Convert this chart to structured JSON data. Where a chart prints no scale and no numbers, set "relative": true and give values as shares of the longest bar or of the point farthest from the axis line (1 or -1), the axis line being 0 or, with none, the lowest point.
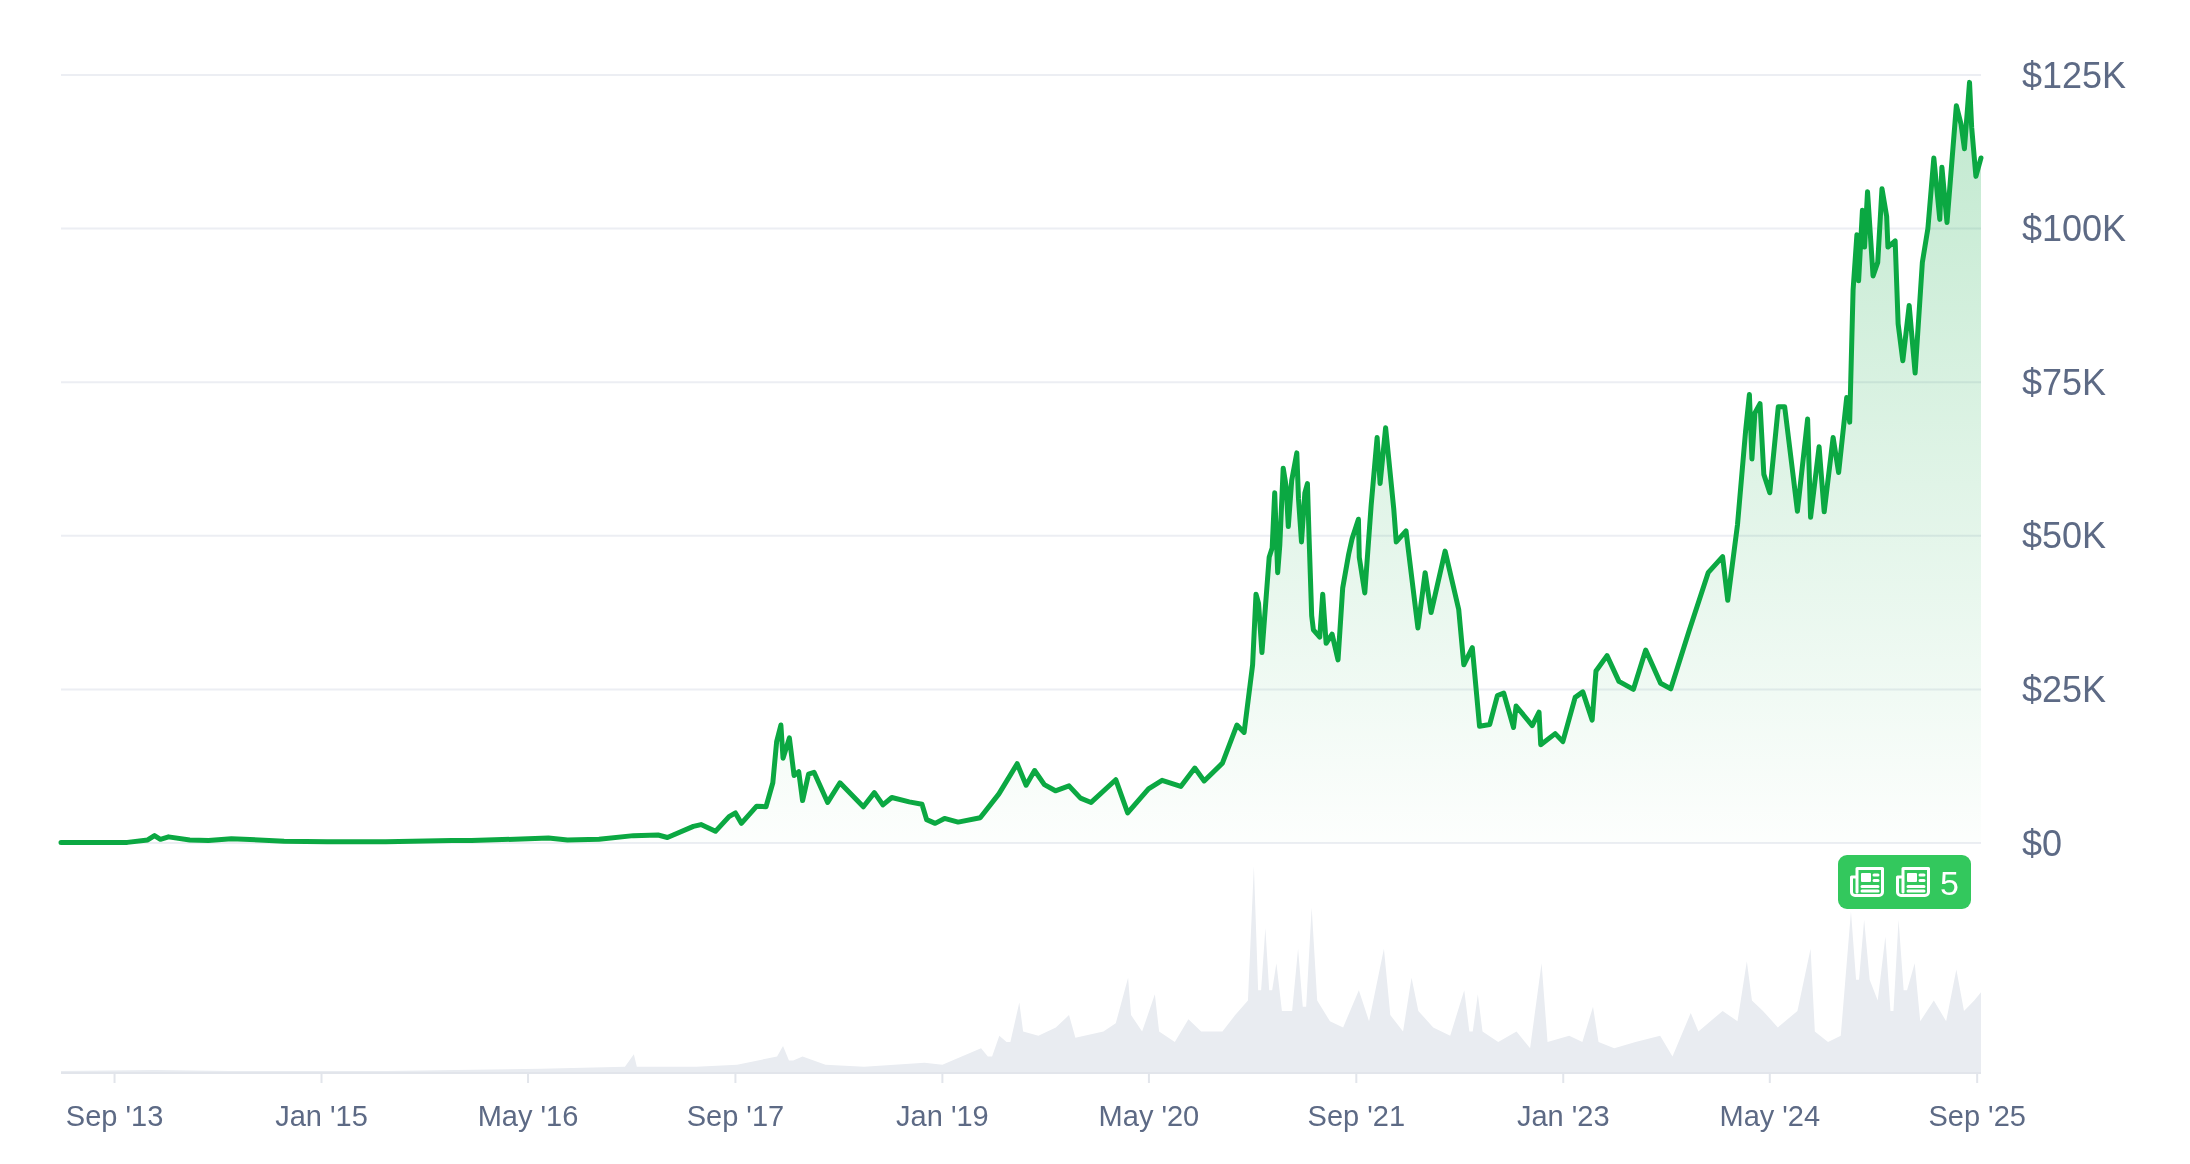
{
  "chart_data": [
    {
      "type": "area",
      "color": "#0ba842",
      "x": [
        "2013-04-28",
        "2013-07-05",
        "2013-10-01",
        "2013-11-18",
        "2013-12-04",
        "2013-12-18",
        "2014-01-06",
        "2014-02-25",
        "2014-04-10",
        "2014-06-03",
        "2014-10-05",
        "2015-01-14",
        "2015-06-01",
        "2015-11-04",
        "2015-12-20",
        "2016-06-18",
        "2016-08-02",
        "2016-10-15",
        "2017-01-04",
        "2017-03-03",
        "2017-03-25",
        "2017-05-25",
        "2017-06-12",
        "2017-07-16",
        "2017-08-17",
        "2017-09-01",
        "2017-09-15",
        "2017-10-21",
        "2017-11-12",
        "2017-11-28",
        "2017-12-07",
        "2017-12-17",
        "2017-12-22",
        "2018-01-06",
        "2018-01-17",
        "2018-01-28",
        "2018-02-06",
        "2018-02-20",
        "2018-03-05",
        "2018-04-06",
        "2018-05-05",
        "2018-06-29",
        "2018-07-25",
        "2018-08-14",
        "2018-09-04",
        "2018-10-15",
        "2018-11-14",
        "2018-11-25",
        "2018-12-15",
        "2019-01-06",
        "2019-02-07",
        "2019-03-31",
        "2019-05-14",
        "2019-06-26",
        "2019-07-17",
        "2019-08-06",
        "2019-08-29",
        "2019-09-24",
        "2019-10-26",
        "2019-11-22",
        "2019-12-17",
        "2020-02-13",
        "2020-03-12",
        "2020-04-30",
        "2020-06-01",
        "2020-07-15",
        "2020-08-17",
        "2020-09-08",
        "2020-10-21",
        "2020-11-24",
        "2020-12-11",
        "2020-12-31",
        "2021-01-08",
        "2021-01-14",
        "2021-01-22",
        "2021-02-08",
        "2021-02-15",
        "2021-02-21",
        "2021-02-28",
        "2021-03-05",
        "2021-03-13",
        "2021-03-20",
        "2021-03-25",
        "2021-04-02",
        "2021-04-14",
        "2021-04-18",
        "2021-04-25",
        "2021-05-03",
        "2021-05-09",
        "2021-05-13",
        "2021-05-19",
        "2021-05-23",
        "2021-06-07",
        "2021-06-14",
        "2021-06-22",
        "2021-07-06",
        "2021-07-20",
        "2021-07-31",
        "2021-08-14",
        "2021-08-22",
        "2021-09-06",
        "2021-09-08",
        "2021-09-21",
        "2021-10-06",
        "2021-10-20",
        "2021-10-27",
        "2021-11-09",
        "2021-11-28",
        "2021-12-04",
        "2021-12-27",
        "2022-01-24",
        "2022-02-10",
        "2022-02-24",
        "2022-03-29",
        "2022-04-30",
        "2022-05-12",
        "2022-06-01",
        "2022-06-18",
        "2022-07-12",
        "2022-07-30",
        "2022-08-14",
        "2022-09-06",
        "2022-09-12",
        "2022-10-20",
        "2022-11-05",
        "2022-11-09",
        "2022-12-13",
        "2022-12-31",
        "2023-01-29",
        "2023-02-16",
        "2023-03-10",
        "2023-03-19",
        "2023-04-14",
        "2023-05-12",
        "2023-06-15",
        "2023-07-14",
        "2023-08-18",
        "2023-09-11",
        "2023-10-24",
        "2023-12-08",
        "2024-01-11",
        "2024-01-23",
        "2024-02-15",
        "2024-03-05",
        "2024-03-14",
        "2024-03-20",
        "2024-03-27",
        "2024-04-08",
        "2024-04-17",
        "2024-05-01",
        "2024-05-21",
        "2024-06-05",
        "2024-06-24",
        "2024-07-05",
        "2024-07-29",
        "2024-08-05",
        "2024-08-25",
        "2024-09-06",
        "2024-09-27",
        "2024-10-10",
        "2024-10-29",
        "2024-11-05",
        "2024-11-13",
        "2024-11-22",
        "2024-11-26",
        "2024-12-05",
        "2024-12-10",
        "2024-12-17",
        "2024-12-30",
        "2025-01-10",
        "2025-01-20",
        "2025-01-31",
        "2025-02-03",
        "2025-02-20",
        "2025-02-27",
        "2025-03-10",
        "2025-03-25",
        "2025-04-08",
        "2025-04-25",
        "2025-05-08",
        "2025-05-22",
        "2025-06-05",
        "2025-06-10",
        "2025-06-22",
        "2025-07-14",
        "2025-07-25",
        "2025-08-02",
        "2025-08-14",
        "2025-08-19",
        "2025-08-29",
        "2025-09-10"
      ],
      "values": [
        100,
        100,
        100,
        500,
        1200,
        600,
        1000,
        500,
        400,
        700,
        300,
        200,
        200,
        400,
        400,
        800,
        500,
        600,
        1200,
        1300,
        900,
        2700,
        3000,
        1900,
        4300,
        4900,
        3200,
        6000,
        5900,
        9800,
        16500,
        19200,
        13800,
        17100,
        11000,
        11600,
        6900,
        11200,
        11500,
        6600,
        9800,
        5900,
        8200,
        6200,
        7400,
        6700,
        6300,
        3800,
        3200,
        4000,
        3400,
        4100,
        8000,
        12900,
        9400,
        11800,
        9500,
        8500,
        9300,
        7300,
        6600,
        10300,
        4900,
        8800,
        10200,
        9200,
        12200,
        10100,
        13000,
        19200,
        18000,
        29000,
        40500,
        39000,
        31000,
        46500,
        48000,
        57000,
        44000,
        48500,
        61000,
        58000,
        51500,
        59000,
        63500,
        56000,
        49000,
        57000,
        58500,
        49500,
        37000,
        34700,
        33500,
        40500,
        32500,
        34000,
        29800,
        41500,
        47000,
        49500,
        52700,
        46500,
        40700,
        55000,
        66000,
        58500,
        67600,
        54500,
        49000,
        50800,
        35000,
        44000,
        37500,
        47500,
        38000,
        29000,
        31800,
        19000,
        19300,
        24000,
        24400,
        18800,
        22300,
        19100,
        21300,
        16000,
        17800,
        16500,
        23700,
        24600,
        20000,
        28000,
        30500,
        26300,
        25000,
        31400,
        26000,
        25100,
        34500,
        44000,
        46600,
        39500,
        51800,
        67000,
        73000,
        62500,
        70000,
        71500,
        60000,
        57000,
        71000,
        71000,
        60300,
        54000,
        69000,
        53000,
        64500,
        53900,
        66000,
        60300,
        72500,
        68500,
        90000,
        99000,
        91500,
        103000,
        97000,
        106000,
        92300,
        94500,
        106500,
        102000,
        97000,
        98000,
        84500,
        78500,
        87500,
        76500,
        94500,
        100000,
        111500,
        101500,
        110000,
        101000,
        120000,
        117000,
        113000,
        123800,
        116500,
        108500,
        111500
      ],
      "xlim": [
        "2013-04-28",
        "2025-09-10"
      ],
      "ylim": [
        0,
        125000
      ],
      "yticks": [
        {
          "value": 0,
          "label": "$0"
        },
        {
          "value": 25000,
          "label": "$25K"
        },
        {
          "value": 50000,
          "label": "$50K"
        },
        {
          "value": 75000,
          "label": "$75K"
        },
        {
          "value": 100000,
          "label": "$100K"
        },
        {
          "value": 125000,
          "label": "$125K"
        }
      ],
      "grid": "y",
      "tick_labels": "y",
      "annotations": [
        "5"
      ]
    },
    {
      "type": "area",
      "relative": true,
      "color": "#e9ecf1",
      "x": [
        "2013-04-28",
        "2013-12-05",
        "2014-06-01",
        "2015-06-01",
        "2016-06-01",
        "2016-12-15",
        "2017-01-05",
        "2017-01-12",
        "2017-06-01",
        "2017-09-05",
        "2017-12-08",
        "2017-12-22",
        "2018-01-05",
        "2018-01-15",
        "2018-02-06",
        "2018-04-01",
        "2018-07-01",
        "2018-11-20",
        "2019-01-01",
        "2019-04-02",
        "2019-04-18",
        "2019-04-28",
        "2019-05-15",
        "2019-06-01",
        "2019-06-10",
        "2019-07-01",
        "2019-07-10",
        "2019-08-15",
        "2019-09-25",
        "2019-10-26",
        "2019-11-10",
        "2020-01-15",
        "2020-02-13",
        "2020-03-13",
        "2020-03-20",
        "2020-04-15",
        "2020-05-15",
        "2020-05-25",
        "2020-07-01",
        "2020-08-02",
        "2020-09-01",
        "2020-10-21",
        "2020-11-20",
        "2020-12-20",
        "2021-01-03",
        "2021-01-13",
        "2021-01-20",
        "2021-01-30",
        "2021-02-08",
        "2021-02-15",
        "2021-02-25",
        "2021-03-10",
        "2021-04-03",
        "2021-04-17",
        "2021-04-28",
        "2021-05-06",
        "2021-05-19",
        "2021-06-01",
        "2021-07-01",
        "2021-08-01",
        "2021-09-07",
        "2021-10-01",
        "2021-11-05",
        "2021-11-20",
        "2021-12-20",
        "2022-01-09",
        "2022-01-25",
        "2022-03-01",
        "2022-04-10",
        "2022-05-13",
        "2022-05-25",
        "2022-06-02",
        "2022-06-14",
        "2022-06-25",
        "2022-08-01",
        "2022-09-13",
        "2022-10-15",
        "2022-11-11",
        "2022-11-25",
        "2023-01-15",
        "2023-02-15",
        "2023-03-12",
        "2023-03-25",
        "2023-05-01",
        "2023-06-20",
        "2023-08-17",
        "2023-09-15",
        "2023-10-28",
        "2023-11-15",
        "2024-01-11",
        "2024-02-15",
        "2024-03-08",
        "2024-03-20",
        "2024-04-15",
        "2024-05-20",
        "2024-07-05",
        "2024-08-05",
        "2024-08-15",
        "2024-09-15",
        "2024-10-15",
        "2024-11-08",
        "2024-11-20",
        "2024-11-27",
        "2024-12-09",
        "2024-12-22",
        "2025-01-10",
        "2025-01-28",
        "2025-02-09",
        "2025-02-16",
        "2025-02-28",
        "2025-03-12",
        "2025-03-20",
        "2025-04-07",
        "2025-04-20",
        "2025-05-22",
        "2025-06-20",
        "2025-07-14",
        "2025-08-01",
        "2025-08-25",
        "2025-09-10"
      ],
      "values": [
        0.01,
        0.015,
        0.01,
        0.01,
        0.02,
        0.03,
        0.09,
        0.03,
        0.03,
        0.04,
        0.08,
        0.13,
        0.06,
        0.06,
        0.08,
        0.04,
        0.03,
        0.05,
        0.04,
        0.12,
        0.08,
        0.08,
        0.18,
        0.15,
        0.15,
        0.34,
        0.2,
        0.18,
        0.22,
        0.28,
        0.17,
        0.2,
        0.24,
        0.46,
        0.28,
        0.2,
        0.38,
        0.2,
        0.15,
        0.26,
        0.2,
        0.2,
        0.28,
        0.35,
        1,
        0.4,
        0.4,
        0.7,
        0.4,
        0.4,
        0.53,
        0.3,
        0.3,
        0.6,
        0.32,
        0.32,
        0.8,
        0.35,
        0.25,
        0.22,
        0.4,
        0.25,
        0.6,
        0.28,
        0.2,
        0.46,
        0.3,
        0.22,
        0.18,
        0.4,
        0.2,
        0.2,
        0.38,
        0.2,
        0.15,
        0.2,
        0.12,
        0.53,
        0.15,
        0.18,
        0.15,
        0.32,
        0.15,
        0.12,
        0.15,
        0.18,
        0.08,
        0.29,
        0.2,
        0.3,
        0.25,
        0.54,
        0.35,
        0.3,
        0.22,
        0.3,
        0.6,
        0.2,
        0.15,
        0.18,
        0.78,
        0.45,
        0.45,
        0.74,
        0.45,
        0.35,
        0.66,
        0.3,
        0.3,
        0.74,
        0.4,
        0.4,
        0.53,
        0.25,
        0.35,
        0.25,
        0.5,
        0.3,
        0.35,
        0.39
      ],
      "xlim": [
        "2013-04-28",
        "2025-09-10"
      ],
      "xticks": [
        {
          "value": "2013-09-01",
          "label": "Sep '13"
        },
        {
          "value": "2015-01-01",
          "label": "Jan '15"
        },
        {
          "value": "2016-05-01",
          "label": "May '16"
        },
        {
          "value": "2017-09-01",
          "label": "Sep '17"
        },
        {
          "value": "2019-01-01",
          "label": "Jan '19"
        },
        {
          "value": "2020-05-01",
          "label": "May '20"
        },
        {
          "value": "2021-09-01",
          "label": "Sep '21"
        },
        {
          "value": "2023-01-01",
          "label": "Jan '23"
        },
        {
          "value": "2024-05-01",
          "label": "May '24"
        },
        {
          "value": "2025-09-01",
          "label": "Sep '25"
        }
      ]
    }
  ]
}
